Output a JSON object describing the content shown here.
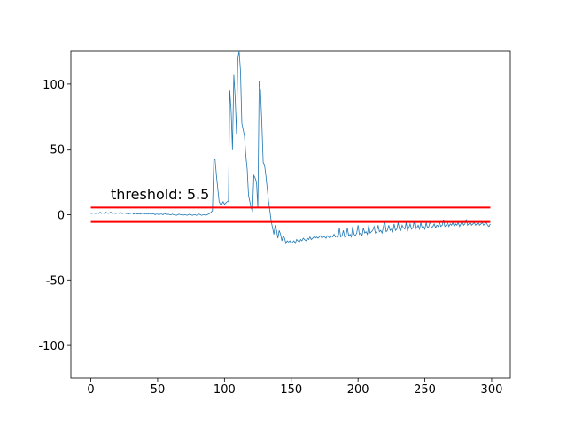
{
  "chart_data": {
    "type": "line",
    "annotation": "threshold: 5.5",
    "x": [
      0,
      1,
      2,
      3,
      4,
      5,
      6,
      7,
      8,
      9,
      10,
      11,
      12,
      13,
      14,
      15,
      16,
      17,
      18,
      19,
      20,
      21,
      22,
      23,
      24,
      25,
      26,
      27,
      28,
      29,
      30,
      31,
      32,
      33,
      34,
      35,
      36,
      37,
      38,
      39,
      40,
      41,
      42,
      43,
      44,
      45,
      46,
      47,
      48,
      49,
      50,
      51,
      52,
      53,
      54,
      55,
      56,
      57,
      58,
      59,
      60,
      61,
      62,
      63,
      64,
      65,
      66,
      67,
      68,
      69,
      70,
      71,
      72,
      73,
      74,
      75,
      76,
      77,
      78,
      79,
      80,
      81,
      82,
      83,
      84,
      85,
      86,
      87,
      88,
      89,
      90,
      91,
      92,
      93,
      94,
      95,
      96,
      97,
      98,
      99,
      100,
      101,
      102,
      103,
      104,
      105,
      106,
      107,
      108,
      109,
      110,
      111,
      112,
      113,
      114,
      115,
      116,
      117,
      118,
      119,
      120,
      121,
      122,
      123,
      124,
      125,
      126,
      127,
      128,
      129,
      130,
      131,
      132,
      133,
      134,
      135,
      136,
      137,
      138,
      139,
      140,
      141,
      142,
      143,
      144,
      145,
      146,
      147,
      148,
      149,
      150,
      151,
      152,
      153,
      154,
      155,
      156,
      157,
      158,
      159,
      160,
      161,
      162,
      163,
      164,
      165,
      166,
      167,
      168,
      169,
      170,
      171,
      172,
      173,
      174,
      175,
      176,
      177,
      178,
      179,
      180,
      181,
      182,
      183,
      184,
      185,
      186,
      187,
      188,
      189,
      190,
      191,
      192,
      193,
      194,
      195,
      196,
      197,
      198,
      199,
      200,
      201,
      202,
      203,
      204,
      205,
      206,
      207,
      208,
      209,
      210,
      211,
      212,
      213,
      214,
      215,
      216,
      217,
      218,
      219,
      220,
      221,
      222,
      223,
      224,
      225,
      226,
      227,
      228,
      229,
      230,
      231,
      232,
      233,
      234,
      235,
      236,
      237,
      238,
      239,
      240,
      241,
      242,
      243,
      244,
      245,
      246,
      247,
      248,
      249,
      250,
      251,
      252,
      253,
      254,
      255,
      256,
      257,
      258,
      259,
      260,
      261,
      262,
      263,
      264,
      265,
      266,
      267,
      268,
      269,
      270,
      271,
      272,
      273,
      274,
      275,
      276,
      277,
      278,
      279,
      280,
      281,
      282,
      283,
      284,
      285,
      286,
      287,
      288,
      289,
      290,
      291,
      292,
      293,
      294,
      295,
      296,
      297,
      298,
      299
    ],
    "values": [
      1,
      1,
      1.5,
      1,
      1,
      1.5,
      1,
      2,
      1,
      1.5,
      1,
      2,
      1.5,
      1,
      1.5,
      2,
      1,
      1.5,
      1,
      1,
      1.5,
      1,
      2,
      1,
      1,
      1.5,
      1,
      1,
      0.5,
      1,
      1,
      1.5,
      0.5,
      1,
      1,
      0.5,
      1,
      0.5,
      1,
      1,
      0.5,
      1,
      0.5,
      0.5,
      1,
      0.5,
      0.5,
      1,
      0,
      0.5,
      0.5,
      0,
      0.5,
      0.5,
      0,
      1,
      0.5,
      0,
      0.5,
      0,
      0,
      0.5,
      0,
      0,
      -0.5,
      0,
      0.5,
      0,
      0,
      -0.5,
      0,
      0,
      -0.5,
      0,
      0.5,
      0,
      -0.5,
      0,
      0,
      -0.5,
      0,
      0.5,
      0,
      -0.5,
      0,
      0,
      -0.5,
      0,
      0.5,
      1,
      2,
      3,
      42,
      42,
      30,
      20,
      10,
      8,
      8,
      10,
      8,
      9,
      10,
      10,
      95,
      80,
      50,
      107,
      90,
      62,
      120,
      125,
      110,
      70,
      65,
      60,
      45,
      35,
      15,
      10,
      5,
      3,
      30,
      28,
      25,
      5,
      102,
      95,
      70,
      40,
      38,
      30,
      20,
      10,
      3,
      -5,
      -10,
      -15,
      -8,
      -12,
      -18,
      -12,
      -15,
      -20,
      -16,
      -18,
      -22,
      -20,
      -21,
      -20,
      -22,
      -21,
      -20,
      -22,
      -19,
      -20,
      -21,
      -19,
      -20,
      -18,
      -19,
      -20,
      -18,
      -19,
      -17,
      -19,
      -18,
      -17,
      -18,
      -17,
      -18,
      -17,
      -16,
      -18,
      -17,
      -17,
      -18,
      -16,
      -17,
      -18,
      -16,
      -17,
      -15,
      -17,
      -16,
      -18,
      -10,
      -17,
      -16,
      -12,
      -17,
      -16,
      -10,
      -16,
      -15,
      -17,
      -9,
      -15,
      -16,
      -14,
      -8,
      -15,
      -14,
      -16,
      -10,
      -14,
      -13,
      -15,
      -8,
      -14,
      -13,
      -12,
      -9,
      -14,
      -13,
      -8,
      -13,
      -12,
      -14,
      -9,
      -5,
      -13,
      -12,
      -8,
      -12,
      -11,
      -13,
      -7,
      -12,
      -11,
      -6,
      -11,
      -12,
      -8,
      -10,
      -11,
      -6,
      -12,
      -10,
      -7,
      -11,
      -10,
      -5,
      -11,
      -10,
      -8,
      -11,
      -6,
      -10,
      -9,
      -11,
      -6,
      -10,
      -9,
      -5,
      -10,
      -9,
      -7,
      -10,
      -8,
      -9,
      -6,
      -9,
      -8,
      -4,
      -9,
      -8,
      -6,
      -9,
      -7,
      -8,
      -6,
      -9,
      -7,
      -8,
      -6,
      -9,
      -7,
      -5,
      -8,
      -7,
      -4,
      -8,
      -7,
      -6,
      -8,
      -7,
      -6,
      -8,
      -7,
      -6,
      -8,
      -7,
      -6,
      -8,
      -7,
      -6,
      -8,
      -9,
      -7
    ],
    "color": "#1f77b4",
    "thresholds": [
      {
        "value": 5.5,
        "xmin": 0,
        "xmax": 299
      },
      {
        "value": -5.5,
        "xmin": 0,
        "xmax": 299
      }
    ],
    "threshold_color": "#ff0000",
    "xlim": [
      -14.95,
      313.95
    ],
    "xticks": [
      0,
      50,
      100,
      150,
      200,
      250,
      300
    ],
    "ylim": [
      -125,
      125
    ],
    "yticks": [
      -100,
      -50,
      0,
      50,
      100
    ]
  }
}
